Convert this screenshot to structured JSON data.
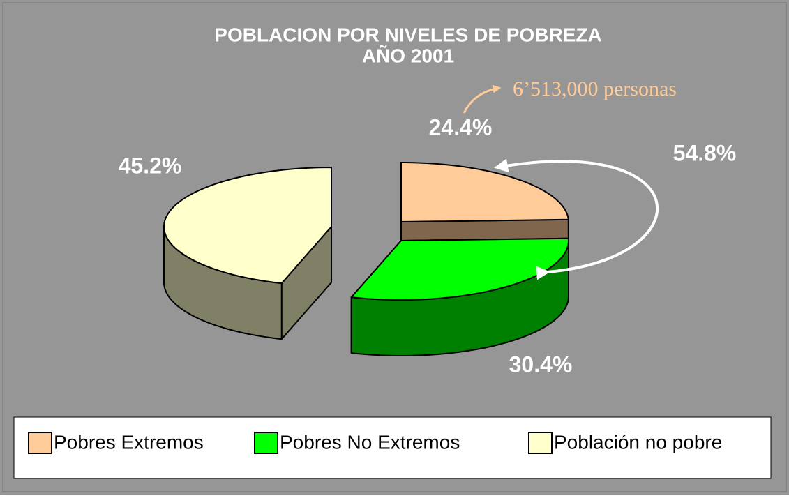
{
  "chart_data": {
    "type": "pie3d",
    "title": "POBLACION POR NIVELES DE POBREZA",
    "subtitle": "AÑO 2001",
    "categories": [
      "Pobres Extremos",
      "Pobres No Extremos",
      "Población no pobre"
    ],
    "values": [
      24.4,
      30.4,
      45.2
    ],
    "value_labels": [
      "24.4%",
      "30.4%",
      "45.2%"
    ],
    "colors": [
      "#ffcc99",
      "#00ff00",
      "#ffffcc"
    ],
    "annotations": [
      "6’513,000 personas",
      "54.8%"
    ],
    "legend": "bottom"
  }
}
